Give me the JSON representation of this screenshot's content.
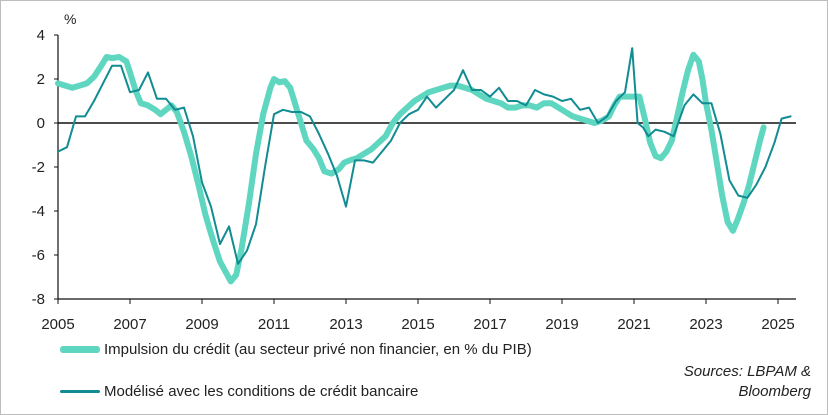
{
  "chart_data": {
    "type": "line",
    "unit_label": "%",
    "ylim": [
      -8,
      4
    ],
    "xlim": [
      2005,
      2025.5
    ],
    "y_ticks": [
      "4",
      "2",
      "0",
      "-2",
      "-4",
      "-6",
      "-8"
    ],
    "y_tick_values": [
      4,
      2,
      0,
      -2,
      -4,
      -6,
      -8
    ],
    "x_ticks": [
      "2005",
      "2007",
      "2009",
      "2011",
      "2013",
      "2015",
      "2017",
      "2019",
      "2021",
      "2023",
      "2025"
    ],
    "x_tick_values": [
      2005,
      2007,
      2009,
      2011,
      2013,
      2015,
      2017,
      2019,
      2021,
      2023,
      2025
    ],
    "grid": false,
    "legend_position": "bottom-left",
    "series": [
      {
        "name": "Impulsion du crédit (au secteur privé non financier, en % du PIB)",
        "color": "#5fd6bf",
        "style": "thick",
        "points": [
          [
            2005.0,
            1.8
          ],
          [
            2005.2,
            1.7
          ],
          [
            2005.4,
            1.6
          ],
          [
            2005.6,
            1.7
          ],
          [
            2005.8,
            1.8
          ],
          [
            2006.0,
            2.1
          ],
          [
            2006.2,
            2.6
          ],
          [
            2006.35,
            3.0
          ],
          [
            2006.5,
            2.95
          ],
          [
            2006.7,
            3.0
          ],
          [
            2006.9,
            2.8
          ],
          [
            2007.0,
            2.3
          ],
          [
            2007.15,
            1.5
          ],
          [
            2007.3,
            0.9
          ],
          [
            2007.5,
            0.8
          ],
          [
            2007.7,
            0.6
          ],
          [
            2007.85,
            0.4
          ],
          [
            2008.0,
            0.6
          ],
          [
            2008.15,
            0.8
          ],
          [
            2008.3,
            0.5
          ],
          [
            2008.5,
            -0.4
          ],
          [
            2008.7,
            -1.5
          ],
          [
            2008.9,
            -2.8
          ],
          [
            2009.1,
            -4.2
          ],
          [
            2009.3,
            -5.3
          ],
          [
            2009.5,
            -6.3
          ],
          [
            2009.7,
            -6.9
          ],
          [
            2009.8,
            -7.2
          ],
          [
            2009.95,
            -6.9
          ],
          [
            2010.1,
            -5.7
          ],
          [
            2010.3,
            -3.7
          ],
          [
            2010.5,
            -1.4
          ],
          [
            2010.7,
            0.4
          ],
          [
            2010.9,
            1.6
          ],
          [
            2011.0,
            2.0
          ],
          [
            2011.15,
            1.85
          ],
          [
            2011.3,
            1.9
          ],
          [
            2011.45,
            1.6
          ],
          [
            2011.6,
            0.8
          ],
          [
            2011.75,
            0.0
          ],
          [
            2011.9,
            -0.8
          ],
          [
            2012.1,
            -1.2
          ],
          [
            2012.25,
            -1.6
          ],
          [
            2012.4,
            -2.2
          ],
          [
            2012.6,
            -2.3
          ],
          [
            2012.8,
            -2.1
          ],
          [
            2012.95,
            -1.8
          ],
          [
            2013.1,
            -1.7
          ],
          [
            2013.3,
            -1.6
          ],
          [
            2013.5,
            -1.4
          ],
          [
            2013.7,
            -1.2
          ],
          [
            2013.9,
            -0.9
          ],
          [
            2014.1,
            -0.6
          ],
          [
            2014.3,
            0.0
          ],
          [
            2014.5,
            0.4
          ],
          [
            2014.7,
            0.7
          ],
          [
            2014.9,
            1.0
          ],
          [
            2015.1,
            1.2
          ],
          [
            2015.3,
            1.4
          ],
          [
            2015.5,
            1.5
          ],
          [
            2015.7,
            1.6
          ],
          [
            2015.9,
            1.7
          ],
          [
            2016.1,
            1.7
          ],
          [
            2016.3,
            1.6
          ],
          [
            2016.5,
            1.5
          ],
          [
            2016.7,
            1.3
          ],
          [
            2016.9,
            1.1
          ],
          [
            2017.1,
            1.0
          ],
          [
            2017.3,
            0.9
          ],
          [
            2017.5,
            0.7
          ],
          [
            2017.7,
            0.7
          ],
          [
            2017.9,
            0.8
          ],
          [
            2018.1,
            0.8
          ],
          [
            2018.3,
            0.7
          ],
          [
            2018.5,
            0.9
          ],
          [
            2018.7,
            0.9
          ],
          [
            2018.9,
            0.7
          ],
          [
            2019.1,
            0.5
          ],
          [
            2019.3,
            0.3
          ],
          [
            2019.5,
            0.2
          ],
          [
            2019.7,
            0.1
          ],
          [
            2019.9,
            0.0
          ],
          [
            2020.1,
            0.1
          ],
          [
            2020.3,
            0.3
          ],
          [
            2020.45,
            0.8
          ],
          [
            2020.6,
            1.2
          ],
          [
            2020.8,
            1.2
          ],
          [
            2021.0,
            1.2
          ],
          [
            2021.15,
            1.2
          ],
          [
            2021.3,
            0.2
          ],
          [
            2021.45,
            -0.9
          ],
          [
            2021.6,
            -1.5
          ],
          [
            2021.75,
            -1.6
          ],
          [
            2021.9,
            -1.3
          ],
          [
            2022.05,
            -0.8
          ],
          [
            2022.2,
            0.3
          ],
          [
            2022.35,
            1.4
          ],
          [
            2022.5,
            2.4
          ],
          [
            2022.65,
            3.1
          ],
          [
            2022.8,
            2.8
          ],
          [
            2022.9,
            2.0
          ],
          [
            2023.0,
            0.9
          ],
          [
            2023.15,
            -0.3
          ],
          [
            2023.3,
            -1.8
          ],
          [
            2023.45,
            -3.3
          ],
          [
            2023.6,
            -4.5
          ],
          [
            2023.75,
            -4.9
          ],
          [
            2023.9,
            -4.3
          ],
          [
            2024.05,
            -3.6
          ],
          [
            2024.2,
            -2.8
          ],
          [
            2024.35,
            -1.8
          ],
          [
            2024.5,
            -0.8
          ],
          [
            2024.6,
            -0.2
          ]
        ]
      },
      {
        "name": "Modélisé avec les conditions de crédit bancaire",
        "color": "#118c92",
        "style": "thin",
        "points": [
          [
            2005.0,
            -1.3
          ],
          [
            2005.25,
            -1.1
          ],
          [
            2005.5,
            0.3
          ],
          [
            2005.75,
            0.3
          ],
          [
            2006.0,
            1.0
          ],
          [
            2006.25,
            1.8
          ],
          [
            2006.5,
            2.6
          ],
          [
            2006.75,
            2.6
          ],
          [
            2007.0,
            1.4
          ],
          [
            2007.25,
            1.5
          ],
          [
            2007.5,
            2.3
          ],
          [
            2007.75,
            1.1
          ],
          [
            2008.0,
            1.1
          ],
          [
            2008.25,
            0.6
          ],
          [
            2008.5,
            0.7
          ],
          [
            2008.75,
            -0.6
          ],
          [
            2009.0,
            -2.7
          ],
          [
            2009.25,
            -3.8
          ],
          [
            2009.5,
            -5.5
          ],
          [
            2009.75,
            -4.7
          ],
          [
            2010.0,
            -6.4
          ],
          [
            2010.25,
            -5.8
          ],
          [
            2010.5,
            -4.6
          ],
          [
            2010.75,
            -2.0
          ],
          [
            2011.0,
            0.4
          ],
          [
            2011.25,
            0.6
          ],
          [
            2011.5,
            0.5
          ],
          [
            2011.75,
            0.5
          ],
          [
            2012.0,
            0.3
          ],
          [
            2012.25,
            -0.5
          ],
          [
            2012.5,
            -1.4
          ],
          [
            2012.75,
            -2.4
          ],
          [
            2013.0,
            -3.8
          ],
          [
            2013.25,
            -1.7
          ],
          [
            2013.5,
            -1.7
          ],
          [
            2013.75,
            -1.8
          ],
          [
            2014.0,
            -1.3
          ],
          [
            2014.25,
            -0.8
          ],
          [
            2014.5,
            0.0
          ],
          [
            2014.75,
            0.4
          ],
          [
            2015.0,
            0.6
          ],
          [
            2015.25,
            1.2
          ],
          [
            2015.5,
            0.7
          ],
          [
            2015.75,
            1.1
          ],
          [
            2016.0,
            1.5
          ],
          [
            2016.25,
            2.4
          ],
          [
            2016.5,
            1.5
          ],
          [
            2016.75,
            1.5
          ],
          [
            2017.0,
            1.2
          ],
          [
            2017.25,
            1.6
          ],
          [
            2017.5,
            1.0
          ],
          [
            2017.75,
            1.0
          ],
          [
            2018.0,
            0.8
          ],
          [
            2018.25,
            1.5
          ],
          [
            2018.5,
            1.3
          ],
          [
            2018.75,
            1.2
          ],
          [
            2019.0,
            1.0
          ],
          [
            2019.25,
            1.1
          ],
          [
            2019.5,
            0.6
          ],
          [
            2019.75,
            0.7
          ],
          [
            2020.0,
            0.0
          ],
          [
            2020.25,
            0.3
          ],
          [
            2020.5,
            1.0
          ],
          [
            2020.75,
            1.4
          ],
          [
            2020.95,
            3.4
          ],
          [
            2021.1,
            0.0
          ],
          [
            2021.25,
            -0.2
          ],
          [
            2021.4,
            -0.6
          ],
          [
            2021.6,
            -0.3
          ],
          [
            2021.85,
            -0.4
          ],
          [
            2022.1,
            -0.6
          ],
          [
            2022.4,
            0.8
          ],
          [
            2022.65,
            1.3
          ],
          [
            2022.9,
            0.9
          ],
          [
            2023.15,
            0.9
          ],
          [
            2023.4,
            -0.5
          ],
          [
            2023.65,
            -2.6
          ],
          [
            2023.9,
            -3.3
          ],
          [
            2024.15,
            -3.4
          ],
          [
            2024.4,
            -2.8
          ],
          [
            2024.65,
            -2.0
          ],
          [
            2024.9,
            -0.9
          ],
          [
            2025.1,
            0.2
          ],
          [
            2025.35,
            0.3
          ]
        ]
      }
    ]
  },
  "sources_lines": [
    "Sources: LBPAM &",
    "Bloomberg"
  ]
}
